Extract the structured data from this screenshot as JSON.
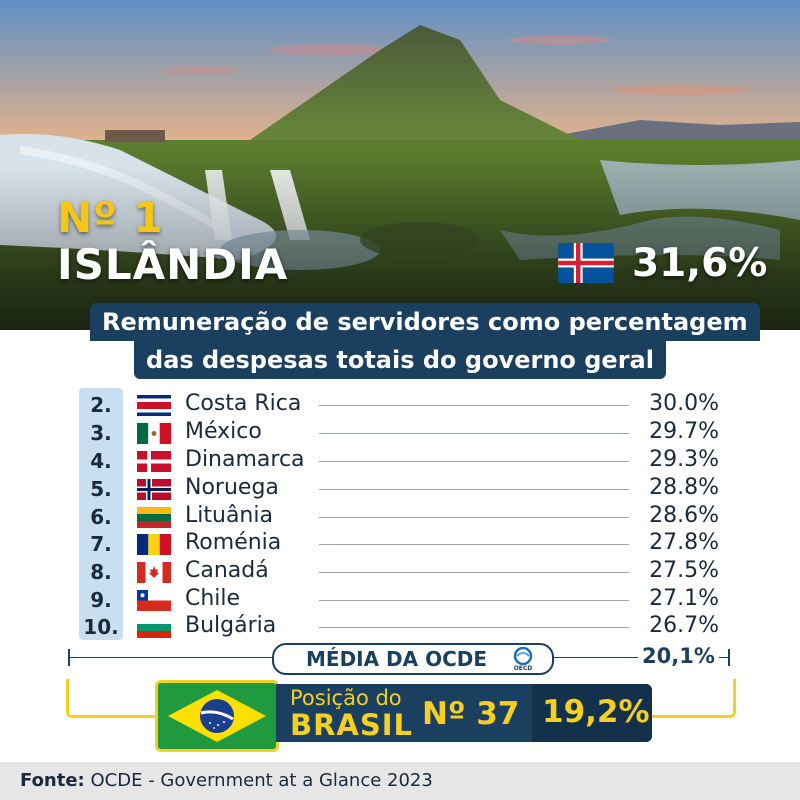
{
  "hero": {
    "rank_label": "Nº 1",
    "country": "ISLÂNDIA",
    "flag_icon": "iceland-flag-icon",
    "value": "31,6%"
  },
  "title": {
    "line1": "Remuneração de servidores como percentagem",
    "line2": "das despesas totais do governo geral"
  },
  "ranking": [
    {
      "rank": "2.",
      "country": "Costa Rica",
      "value": "30.0%",
      "flag_icon": "costa-rica-flag-icon"
    },
    {
      "rank": "3.",
      "country": "México",
      "value": "29.7%",
      "flag_icon": "mexico-flag-icon"
    },
    {
      "rank": "4.",
      "country": "Dinamarca",
      "value": "29.3%",
      "flag_icon": "denmark-flag-icon"
    },
    {
      "rank": "5.",
      "country": "Noruega",
      "value": "28.8%",
      "flag_icon": "norway-flag-icon"
    },
    {
      "rank": "6.",
      "country": "Lituânia",
      "value": "28.6%",
      "flag_icon": "lithuania-flag-icon"
    },
    {
      "rank": "7.",
      "country": "Roménia",
      "value": "27.8%",
      "flag_icon": "romania-flag-icon"
    },
    {
      "rank": "8.",
      "country": "Canadá",
      "value": "27.5%",
      "flag_icon": "canada-flag-icon"
    },
    {
      "rank": "9.",
      "country": "Chile",
      "value": "27.1%",
      "flag_icon": "chile-flag-icon"
    },
    {
      "rank": "10.",
      "country": "Bulgária",
      "value": "26.7%",
      "flag_icon": "bulgaria-flag-icon"
    }
  ],
  "ocde": {
    "label": "MÉDIA DA OCDE",
    "logo_icon": "oecd-logo-icon",
    "value": "20,1%"
  },
  "brasil": {
    "line1": "Posição do",
    "line2": "BRASIL",
    "rank": "Nº 37",
    "value": "19,2%",
    "flag_icon": "brazil-flag-icon"
  },
  "footer": {
    "source_label": "Fonte:",
    "source_text": "OCDE - Government at a Glance 2023"
  },
  "colors": {
    "navy": "#1b3f5f",
    "yellow": "#f5d020",
    "light_blue": "#c7dff0"
  }
}
